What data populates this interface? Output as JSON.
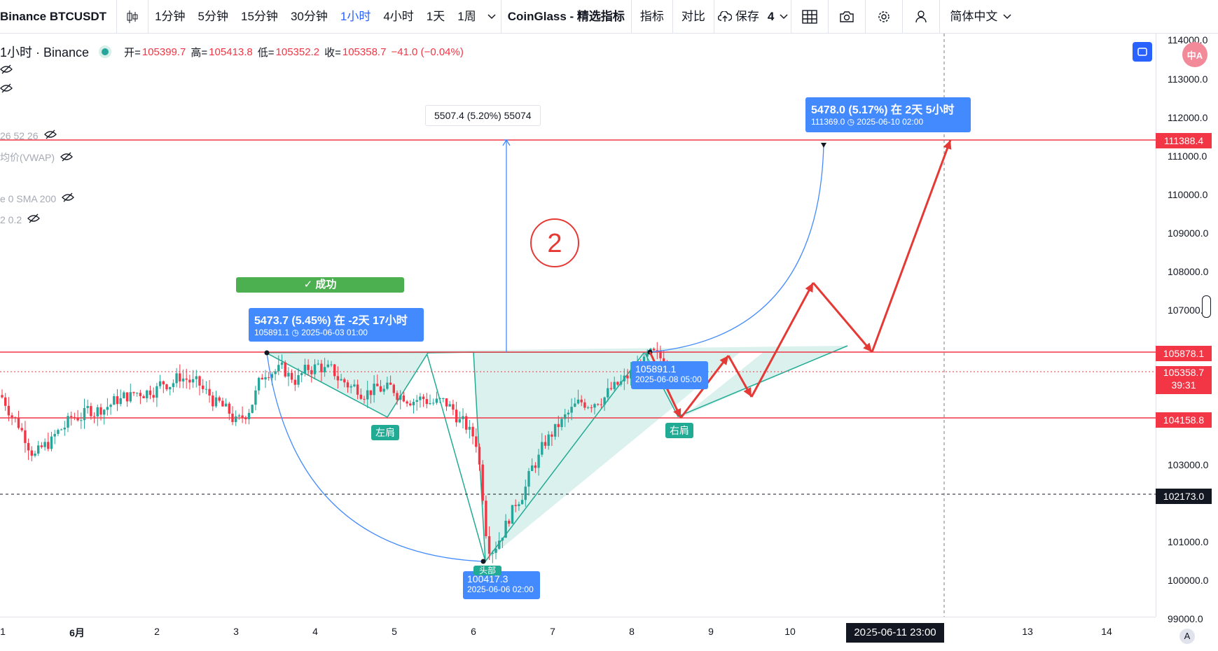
{
  "toolbar": {
    "symbol": "Binance BTCUSDT",
    "intervals": [
      "1分钟",
      "5分钟",
      "15分钟",
      "30分钟",
      "1小时",
      "4小时",
      "1天",
      "1周"
    ],
    "active_interval": "1小时",
    "coinglass": "CoinGlass - 精选指标",
    "indicators": "指标",
    "compare": "对比",
    "save": "保存",
    "count": "4",
    "language": "简体中文"
  },
  "legend": {
    "title": "1小时 · Binance",
    "open_label": "开=",
    "open": "105399.7",
    "high_label": "高=",
    "high": "105413.8",
    "low_label": "低=",
    "low": "105352.2",
    "close_label": "收=",
    "close": "105358.7",
    "change": "−41.0 (−0.04%)"
  },
  "indicators": [
    {
      "text": "26 52 26"
    },
    {
      "text": "均价(VWAP)"
    },
    {
      "text": "e 0 SMA 200"
    },
    {
      "text": "2 0.2"
    }
  ],
  "price_axis": {
    "ticks": [
      "114000.0",
      "113000.0",
      "112000.0",
      "111000.0",
      "110000.0",
      "109000.0",
      "108000.0",
      "107000.0",
      "103000.0",
      "101000.0",
      "100000.0",
      "99000.0"
    ],
    "labels": [
      {
        "text": "111388.4",
        "color": "#f23645"
      },
      {
        "text": "105878.1",
        "color": "#f23645"
      },
      {
        "text": "105358.7",
        "sub": "39:31",
        "color": "#f23645"
      },
      {
        "text": "104158.8",
        "color": "#f23645"
      },
      {
        "text": "102173.0",
        "color": "#131722"
      }
    ]
  },
  "time_axis": {
    "ticks": [
      "1",
      "6月",
      "2",
      "3",
      "4",
      "5",
      "6",
      "7",
      "8",
      "9",
      "10",
      "11",
      "13",
      "14"
    ],
    "cursor": "2025-06-11   23:00"
  },
  "annotations": {
    "measure": "5507.4 (5.20%) 55074",
    "success": "✓ 成功",
    "callout_left_l1": "5473.7 (5.45%) 在 -2天 17小时",
    "callout_left_l2": "105891.1 ◷ 2025-06-03  01:00",
    "callout_right_l1": "5478.0 (5.17%) 在 2天 5小时",
    "callout_right_l2": "111369.0 ◷ 2025-06-10  02:00",
    "callout_mid_l1": "105891.1",
    "callout_mid_l2": "2025-06-08 05:00",
    "callout_low_l1": "100417.3",
    "callout_low_l2": "2025-06-06 02:00",
    "left_shoulder": "左肩",
    "right_shoulder": "右肩",
    "head": "头部",
    "circle_number": "2"
  },
  "colors": {
    "up": "#26a69a",
    "down": "#f23645",
    "accent": "#2962ff",
    "line": "#e53935"
  }
}
